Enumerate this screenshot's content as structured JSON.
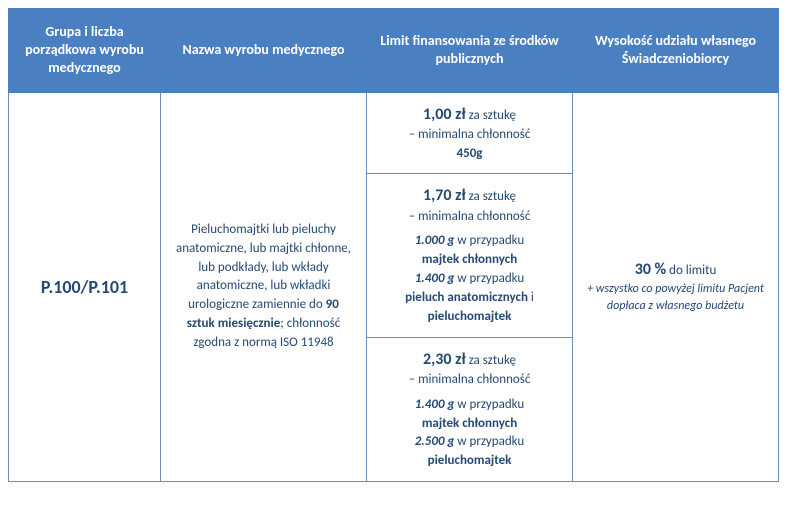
{
  "header": {
    "col_group": "Grupa i liczba porządkowa wyrobu medycznego",
    "col_name": "Nazwa wyrobu medycznego",
    "col_limit": "Limit finansowania ze środków publicznych",
    "col_own": "Wysokość udziału własnego Świadczeniobiorcy"
  },
  "row": {
    "group_code": "P.100/P.101",
    "product_name_prefix": "Pieluchomajtki lub pieluchy anatomiczne, lub majtki chłonne, lub podkłady, lub wkłady anatomiczne, lub wkładki urologiczne zamiennie do ",
    "product_qty": "90 sztuk miesięcznie",
    "product_name_suffix": "; chłonność zgodna z normą ISO 11948",
    "own_pct": "30 %",
    "own_pct_suffix": " do limitu",
    "own_note": "+ wszystko co powyżej limitu Pacjent dopłaca z własnego budżetu",
    "limits": [
      {
        "price": "1,00 zł",
        "per": " za sztukę",
        "absorb_label": "– minimalna chłonność",
        "absorb_value": "450g"
      },
      {
        "price": "1,70 zł",
        "per": " za sztukę",
        "absorb_label": "– minimalna chłonność",
        "g1": "1.000 g",
        "case1": " w przypadku ",
        "prod1": "majtek chłonnych",
        "g2": "1.400 g",
        "case2": " w przypadku ",
        "prod2": "pieluch anatomicznych",
        "and": " i ",
        "prod2b": "pieluchomajtek"
      },
      {
        "price": "2,30 zł",
        "per": " za sztukę",
        "absorb_label": "– minimalna chłonność",
        "g1": "1.400 g",
        "case1": " w przypadku ",
        "prod1": "majtek chłonnych",
        "g2": "2.500 g",
        "case2": " w przypadku ",
        "prod2": "pieluchomajtek"
      }
    ]
  },
  "colors": {
    "header_bg": "#4a7fc2",
    "header_text": "#ffffff",
    "border": "#6b8db8",
    "text": "#254974",
    "background": "#ffffff"
  }
}
